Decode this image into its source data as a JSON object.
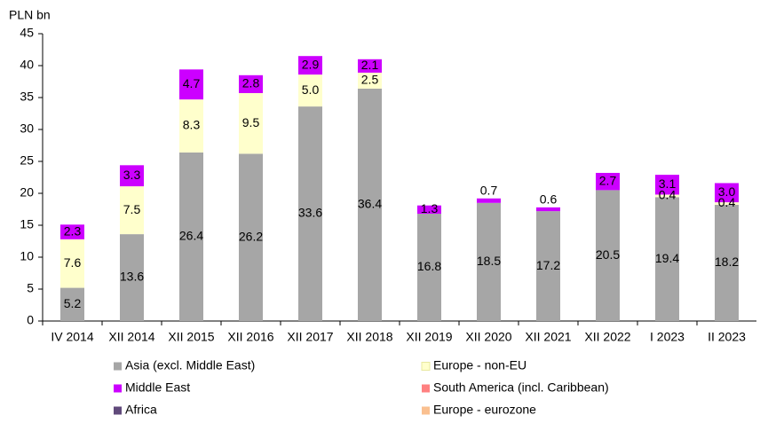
{
  "chart_data": {
    "type": "bar",
    "stacked": true,
    "y_label": "PLN bn",
    "categories": [
      "IV 2014",
      "XII 2014",
      "XII 2015",
      "XII 2016",
      "XII 2017",
      "XII 2018",
      "XII 2019",
      "XII 2020",
      "XII 2021",
      "XII 2022",
      "I 2023",
      "II 2023"
    ],
    "series": [
      {
        "name": "Asia (excl. Middle East)",
        "color": "#a6a6a6",
        "values": [
          5.2,
          13.6,
          26.4,
          26.2,
          33.6,
          36.4,
          16.8,
          18.5,
          17.2,
          20.5,
          19.4,
          18.2
        ]
      },
      {
        "name": "Europe - non-EU",
        "color": "#ffffcc",
        "values": [
          7.6,
          7.5,
          8.3,
          9.5,
          5.0,
          2.5,
          0,
          0,
          0,
          0,
          0.4,
          0.4
        ],
        "value_labels": [
          "7.6",
          "7.5",
          "8.3",
          "9.5",
          "5.0",
          "2.5",
          null,
          null,
          null,
          null,
          "0.4",
          "0.4"
        ]
      },
      {
        "name": "Middle East",
        "color": "#cc00ff",
        "values": [
          2.3,
          3.3,
          4.7,
          2.8,
          2.9,
          2.1,
          1.3,
          0.7,
          0.6,
          2.7,
          3.1,
          3.0
        ],
        "value_labels": [
          "2.3",
          "3.3",
          "4.7",
          "2.8",
          "2.9",
          "2.1",
          "1.3",
          "0.7",
          "0.6",
          "2.7",
          "3.1",
          "3.0"
        ]
      },
      {
        "name": "South America (incl. Caribbean)",
        "color": "#ff8080",
        "values": [
          0,
          0,
          0,
          0,
          0,
          0,
          0,
          0,
          0,
          0,
          0,
          0
        ]
      },
      {
        "name": "Africa",
        "color": "#604a7b",
        "values": [
          0,
          0,
          0,
          0,
          0,
          0,
          0,
          0,
          0,
          0,
          0,
          0
        ]
      },
      {
        "name": "Europe - eurozone",
        "color": "#fac090",
        "values": [
          0,
          0,
          0,
          0,
          0,
          0,
          0,
          0,
          0,
          0,
          0,
          0
        ]
      }
    ],
    "ylim": [
      0,
      45
    ],
    "yticks": [
      0,
      5,
      10,
      15,
      20,
      25,
      30,
      35,
      40,
      45
    ],
    "grid": false,
    "legend": "bottom"
  }
}
